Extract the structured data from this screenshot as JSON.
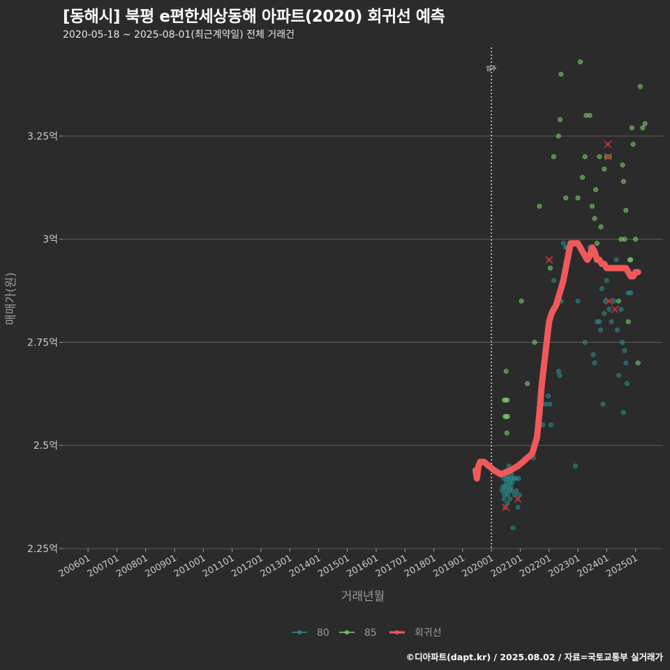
{
  "header": {
    "title": "[동해시] 북평 e편한세상동해 아파트(2020) 회귀선 예측",
    "subtitle": "2020-05-18 ~ 2025-08-01(최근계약일) 전체 거래건"
  },
  "caption": "©디아파트(dapt.kr) / 2025.08.02 / 자료=국토교통부 실거래가",
  "chart_data": {
    "type": "scatter",
    "xlabel": "거래년월",
    "ylabel": "매매가(원)",
    "x_range": [
      "2005-02-15",
      "2025-12-15"
    ],
    "y_range_eok": [
      2.25,
      3.475
    ],
    "y_ticks": [
      {
        "value": 2.25,
        "label": "2.25억"
      },
      {
        "value": 2.5,
        "label": "2.5억"
      },
      {
        "value": 2.75,
        "label": "2.75억"
      },
      {
        "value": 3.0,
        "label": "3억"
      },
      {
        "value": 3.25,
        "label": "3.25억"
      }
    ],
    "x_ticks": [
      "200601",
      "200701",
      "200801",
      "200901",
      "201001",
      "201101",
      "201201",
      "201301",
      "201401",
      "201501",
      "201601",
      "201701",
      "201801",
      "201901",
      "202001",
      "202101",
      "202201",
      "202301",
      "202401",
      "202501"
    ],
    "grid": "horizontal-major",
    "annotation": {
      "label": "입주",
      "x": "2020-01-01"
    },
    "legend": {
      "position": "bottom",
      "items": [
        {
          "name": "80",
          "color": "#2a8f8f"
        },
        {
          "name": "85",
          "color": "#7dd36a"
        },
        {
          "name": "회귀선",
          "color": "#f0595a"
        }
      ]
    },
    "series": [
      {
        "name": "80",
        "color": "#2a8f8f",
        "points": [
          [
            "2020-05-15",
            2.39
          ],
          [
            "2020-05-25",
            2.4
          ],
          [
            "2020-06-05",
            2.42
          ],
          [
            "2020-06-10",
            2.37
          ],
          [
            "2020-06-15",
            2.38
          ],
          [
            "2020-06-20",
            2.4
          ],
          [
            "2020-06-25",
            2.35
          ],
          [
            "2020-07-01",
            2.39
          ],
          [
            "2020-07-05",
            2.41
          ],
          [
            "2020-07-10",
            2.42
          ],
          [
            "2020-07-15",
            2.43
          ],
          [
            "2020-07-20",
            2.36
          ],
          [
            "2020-07-25",
            2.38
          ],
          [
            "2020-08-01",
            2.4
          ],
          [
            "2020-08-05",
            2.42
          ],
          [
            "2020-08-10",
            2.45
          ],
          [
            "2020-08-15",
            2.39
          ],
          [
            "2020-08-20",
            2.41
          ],
          [
            "2020-08-25",
            2.37
          ],
          [
            "2020-09-01",
            2.42
          ],
          [
            "2020-09-05",
            2.4
          ],
          [
            "2020-09-10",
            2.43
          ],
          [
            "2020-09-15",
            2.39
          ],
          [
            "2020-09-20",
            2.41
          ],
          [
            "2020-10-01",
            2.3
          ],
          [
            "2020-10-10",
            2.42
          ],
          [
            "2020-10-20",
            2.38
          ],
          [
            "2020-11-01",
            2.42
          ],
          [
            "2020-11-10",
            2.39
          ],
          [
            "2020-12-01",
            2.35
          ],
          [
            "2020-12-10",
            2.42
          ],
          [
            "2020-12-20",
            2.38
          ],
          [
            "2021-06-15",
            2.47
          ],
          [
            "2021-10-15",
            2.55
          ],
          [
            "2021-11-15",
            2.6
          ],
          [
            "2021-12-20",
            2.62
          ],
          [
            "2022-01-10",
            2.6
          ],
          [
            "2022-01-25",
            2.55
          ],
          [
            "2022-03-01",
            2.9
          ],
          [
            "2022-04-10",
            2.85
          ],
          [
            "2022-05-01",
            2.68
          ],
          [
            "2022-05-15",
            2.67
          ],
          [
            "2022-06-01",
            2.85
          ],
          [
            "2022-07-01",
            2.99
          ],
          [
            "2022-08-01",
            2.98
          ],
          [
            "2022-08-15",
            2.98
          ],
          [
            "2022-09-01",
            2.95
          ],
          [
            "2022-12-01",
            2.45
          ],
          [
            "2023-01-01",
            2.85
          ],
          [
            "2023-04-01",
            2.75
          ],
          [
            "2023-06-01",
            2.98
          ],
          [
            "2023-07-15",
            2.72
          ],
          [
            "2023-08-01",
            2.7
          ],
          [
            "2023-09-01",
            2.8
          ],
          [
            "2023-10-01",
            2.8
          ],
          [
            "2023-10-15",
            2.78
          ],
          [
            "2023-11-01",
            2.88
          ],
          [
            "2023-11-15",
            2.6
          ],
          [
            "2023-12-01",
            2.82
          ],
          [
            "2023-12-15",
            2.85
          ],
          [
            "2024-01-01",
            2.9
          ],
          [
            "2024-02-01",
            2.83
          ],
          [
            "2024-03-01",
            2.8
          ],
          [
            "2024-04-01",
            2.85
          ],
          [
            "2024-05-01",
            2.95
          ],
          [
            "2024-05-15",
            2.78
          ],
          [
            "2024-06-01",
            2.67
          ],
          [
            "2024-07-01",
            2.83
          ],
          [
            "2024-07-15",
            2.75
          ],
          [
            "2024-08-01",
            2.58
          ],
          [
            "2024-08-15",
            2.73
          ],
          [
            "2024-09-01",
            2.7
          ],
          [
            "2024-09-15",
            2.65
          ],
          [
            "2024-10-01",
            2.87
          ],
          [
            "2024-11-01",
            2.87
          ]
        ]
      },
      {
        "name": "85",
        "color": "#7dd36a",
        "points": [
          [
            "2020-06-10",
            2.61
          ],
          [
            "2020-06-20",
            2.57
          ],
          [
            "2020-07-01",
            2.61
          ],
          [
            "2020-07-10",
            2.57
          ],
          [
            "2020-07-20",
            2.61
          ],
          [
            "2020-07-25",
            2.57
          ],
          [
            "2020-07-15",
            2.53
          ],
          [
            "2020-07-05",
            2.68
          ],
          [
            "2021-01-15",
            2.85
          ],
          [
            "2021-04-01",
            2.65
          ],
          [
            "2021-07-01",
            2.75
          ],
          [
            "2021-09-01",
            3.08
          ],
          [
            "2022-01-15",
            2.93
          ],
          [
            "2022-03-01",
            3.2
          ],
          [
            "2022-05-01",
            3.25
          ],
          [
            "2022-05-20",
            3.29
          ],
          [
            "2022-06-01",
            3.4
          ],
          [
            "2022-08-01",
            3.1
          ],
          [
            "2023-01-01",
            3.1
          ],
          [
            "2023-02-01",
            3.43
          ],
          [
            "2023-03-01",
            3.15
          ],
          [
            "2023-04-01",
            3.2
          ],
          [
            "2023-04-15",
            3.3
          ],
          [
            "2023-06-01",
            3.3
          ],
          [
            "2023-07-01",
            3.08
          ],
          [
            "2023-08-01",
            3.05
          ],
          [
            "2023-08-15",
            3.12
          ],
          [
            "2023-09-01",
            2.99
          ],
          [
            "2023-10-01",
            3.2
          ],
          [
            "2023-10-20",
            3.03
          ],
          [
            "2023-12-01",
            3.17
          ],
          [
            "2024-01-01",
            3.2
          ],
          [
            "2024-02-01",
            3.2
          ],
          [
            "2024-04-01",
            2.93
          ],
          [
            "2024-06-01",
            2.85
          ],
          [
            "2024-07-01",
            3.0
          ],
          [
            "2024-07-20",
            3.18
          ],
          [
            "2024-08-01",
            3.14
          ],
          [
            "2024-08-15",
            3.0
          ],
          [
            "2024-09-01",
            3.07
          ],
          [
            "2024-10-01",
            2.8
          ],
          [
            "2024-10-20",
            2.95
          ],
          [
            "2024-11-01",
            2.95
          ],
          [
            "2024-11-15",
            3.27
          ],
          [
            "2024-12-01",
            3.23
          ],
          [
            "2025-01-01",
            3.0
          ],
          [
            "2025-02-01",
            2.7
          ],
          [
            "2025-03-01",
            3.37
          ],
          [
            "2025-04-01",
            3.27
          ],
          [
            "2025-05-01",
            3.28
          ]
        ]
      },
      {
        "name": "회귀선",
        "color": "#f0595a",
        "points": [
          [
            "2019-06-15",
            2.44
          ],
          [
            "2019-07-01",
            2.42
          ],
          [
            "2019-07-20",
            2.45
          ],
          [
            "2019-08-10",
            2.46
          ],
          [
            "2019-10-01",
            2.46
          ],
          [
            "2019-12-01",
            2.45
          ],
          [
            "2020-02-01",
            2.44
          ],
          [
            "2020-05-01",
            2.43
          ],
          [
            "2020-09-01",
            2.44
          ],
          [
            "2020-12-01",
            2.45
          ],
          [
            "2021-02-01",
            2.46
          ],
          [
            "2021-04-01",
            2.47
          ],
          [
            "2021-06-01",
            2.48
          ],
          [
            "2021-08-01",
            2.52
          ],
          [
            "2021-09-01",
            2.58
          ],
          [
            "2021-10-01",
            2.65
          ],
          [
            "2021-11-01",
            2.7
          ],
          [
            "2021-12-01",
            2.75
          ],
          [
            "2022-01-01",
            2.8
          ],
          [
            "2022-02-01",
            2.82
          ],
          [
            "2022-03-01",
            2.83
          ],
          [
            "2022-04-01",
            2.84
          ],
          [
            "2022-05-01",
            2.86
          ],
          [
            "2022-06-01",
            2.88
          ],
          [
            "2022-07-01",
            2.9
          ],
          [
            "2022-08-01",
            2.93
          ],
          [
            "2022-09-01",
            2.96
          ],
          [
            "2022-10-01",
            2.99
          ],
          [
            "2022-12-01",
            2.99
          ],
          [
            "2023-01-01",
            2.99
          ],
          [
            "2023-02-01",
            2.98
          ],
          [
            "2023-03-01",
            2.97
          ],
          [
            "2023-04-01",
            2.96
          ],
          [
            "2023-05-01",
            2.95
          ],
          [
            "2023-06-01",
            2.96
          ],
          [
            "2023-07-01",
            2.98
          ],
          [
            "2023-08-01",
            2.97
          ],
          [
            "2023-09-01",
            2.95
          ],
          [
            "2023-10-01",
            2.95
          ],
          [
            "2023-11-01",
            2.94
          ],
          [
            "2023-12-01",
            2.94
          ],
          [
            "2024-01-01",
            2.93
          ],
          [
            "2024-03-01",
            2.93
          ],
          [
            "2024-05-01",
            2.93
          ],
          [
            "2024-07-01",
            2.93
          ],
          [
            "2024-09-01",
            2.93
          ],
          [
            "2024-10-01",
            2.92
          ],
          [
            "2024-11-01",
            2.91
          ],
          [
            "2024-12-01",
            2.91
          ],
          [
            "2025-01-01",
            2.92
          ],
          [
            "2025-02-01",
            2.92
          ]
        ]
      }
    ],
    "outliers": [
      [
        "2020-07-01",
        2.35
      ],
      [
        "2020-12-01",
        2.37
      ],
      [
        "2022-01-01",
        2.95
      ],
      [
        "2024-01-15",
        3.23
      ],
      [
        "2024-01-20",
        3.2
      ],
      [
        "2024-02-01",
        2.85
      ],
      [
        "2024-04-15",
        2.83
      ]
    ]
  }
}
